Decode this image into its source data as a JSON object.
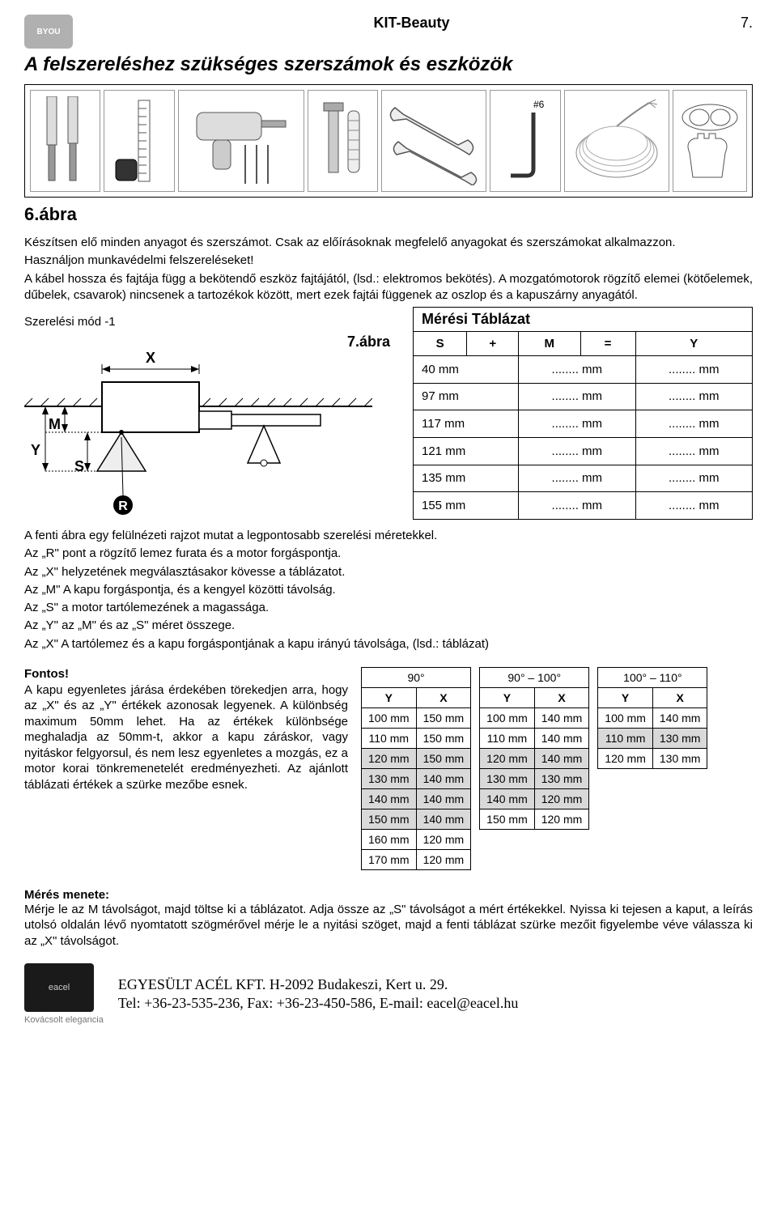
{
  "header": {
    "logo_top": "",
    "logo_text": "BYOU",
    "doc_title": "KIT-Beauty",
    "page_number": "7."
  },
  "section_title": "A felszereléshez szükséges szerszámok és eszközök",
  "fig6_label": "6.ábra",
  "intro": {
    "l1": "Készítsen elő minden anyagot és szerszámot. Csak az előírásoknak megfelelő anyagokat és szerszámokat alkalmazzon.",
    "l2": "Használjon munkavédelmi felszereléseket!",
    "l3": "A kábel hossza és fajtája függ a bekötendő eszköz fajtájától, (lsd.: elektromos bekötés). A mozgatómotorok rögzítő elemei (kötőelemek, dűbelek, csavarok) nincsenek a tartozékok között, mert ezek fajtái függenek az oszlop és a kapuszárny anyagától."
  },
  "mount_heading": "Szerelési mód -1",
  "fig7_label": "7.ábra",
  "diagram_labels": {
    "X": "X",
    "M": "M",
    "Y": "Y",
    "S": "S",
    "R": "R"
  },
  "meas_table": {
    "caption": "Mérési Táblázat",
    "head": {
      "S": "S",
      "plus": "+",
      "M": "M",
      "eq": "=",
      "Y": "Y"
    },
    "rows": [
      {
        "s": "40 mm",
        "m": "........ mm",
        "y": "........ mm"
      },
      {
        "s": "97 mm",
        "m": "........ mm",
        "y": "........ mm"
      },
      {
        "s": "117 mm",
        "m": "........ mm",
        "y": "........ mm"
      },
      {
        "s": "121 mm",
        "m": "........ mm",
        "y": "........ mm"
      },
      {
        "s": "135 mm",
        "m": "........ mm",
        "y": "........ mm"
      },
      {
        "s": "155 mm",
        "m": "........ mm",
        "y": "........ mm"
      }
    ]
  },
  "mid_text": {
    "l1": "A fenti ábra egy felülnézeti rajzot mutat a legpontosabb szerelési méretekkel.",
    "l2": "Az „R\" pont a rögzítő lemez furata és a motor forgáspontja.",
    "l3": "Az „X\" helyzetének megválasztásakor kövesse a táblázatot.",
    "l4": "Az „M\" A kapu forgáspontja, és a kengyel közötti távolság.",
    "l5": "Az „S\" a motor tartólemezének a magassága.",
    "l6": "Az „Y\" az „M\" és az „S\" méret összege.",
    "l7": "Az „X\" A tartólemez és a kapu forgáspontjának a kapu irányú távolsága, (lsd.: táblázat)"
  },
  "important": {
    "h": "Fontos!",
    "body": "A kapu egyenletes járása érdekében törekedjen arra, hogy az „X\" és az „Y\" értékek azonosak legyenek. A különbség maximum 50mm lehet. Ha az értékek különbsége meghaladja az 50mm-t, akkor a kapu záráskor, vagy nyitáskor felgyorsul, és nem lesz egyenletes a mozgás, ez a motor korai tönkremenetelét eredményezheti. Az ajánlott táblázati értékek a szürke mezőbe esnek."
  },
  "angle_tables": [
    {
      "angle": "90°",
      "head": {
        "Y": "Y",
        "X": "X"
      },
      "rows": [
        {
          "y": "100 mm",
          "x": "150 mm",
          "gray": false
        },
        {
          "y": "110 mm",
          "x": "150 mm",
          "gray": false
        },
        {
          "y": "120 mm",
          "x": "150 mm",
          "gray": true
        },
        {
          "y": "130 mm",
          "x": "140 mm",
          "gray": true
        },
        {
          "y": "140 mm",
          "x": "140 mm",
          "gray": true
        },
        {
          "y": "150 mm",
          "x": "140 mm",
          "gray": true
        },
        {
          "y": "160 mm",
          "x": "120 mm",
          "gray": false
        },
        {
          "y": "170 mm",
          "x": "120 mm",
          "gray": false
        }
      ]
    },
    {
      "angle": "90° – 100°",
      "head": {
        "Y": "Y",
        "X": "X"
      },
      "rows": [
        {
          "y": "100 mm",
          "x": "140 mm",
          "gray": false
        },
        {
          "y": "110 mm",
          "x": "140 mm",
          "gray": false
        },
        {
          "y": "120 mm",
          "x": "140 mm",
          "gray": true
        },
        {
          "y": "130 mm",
          "x": "130 mm",
          "gray": true
        },
        {
          "y": "140 mm",
          "x": "120 mm",
          "gray": true
        },
        {
          "y": "150 mm",
          "x": "120 mm",
          "gray": false
        }
      ]
    },
    {
      "angle": "100° – 110°",
      "head": {
        "Y": "Y",
        "X": "X"
      },
      "rows": [
        {
          "y": "100 mm",
          "x": "140 mm",
          "gray": false
        },
        {
          "y": "110 mm",
          "x": "130 mm",
          "gray": true
        },
        {
          "y": "120 mm",
          "x": "130 mm",
          "gray": false
        }
      ]
    }
  ],
  "measure_proc": {
    "h": "Mérés menete:",
    "body": "Mérje le az M távolságot, majd töltse ki a táblázatot. Adja össze az „S\" távolságot a mért értékekkel. Nyissa ki tejesen a kaput, a leírás utolsó oldalán lévő nyomtatott szögmérővel mérje le a nyitási szöget, majd a fenti táblázat szürke mezőit figyelembe véve válassza ki az „X\" távolságot."
  },
  "footer": {
    "logo_text": "eacel",
    "tagline": "Kovácsolt elegancia",
    "addr1": "EGYESÜLT ACÉL KFT. H-2092 Budakeszi, Kert u. 29.",
    "addr2": "Tel: +36-23-535-236, Fax: +36-23-450-586, E-mail: eacel@eacel.hu"
  },
  "tool_label_hash": "#6"
}
